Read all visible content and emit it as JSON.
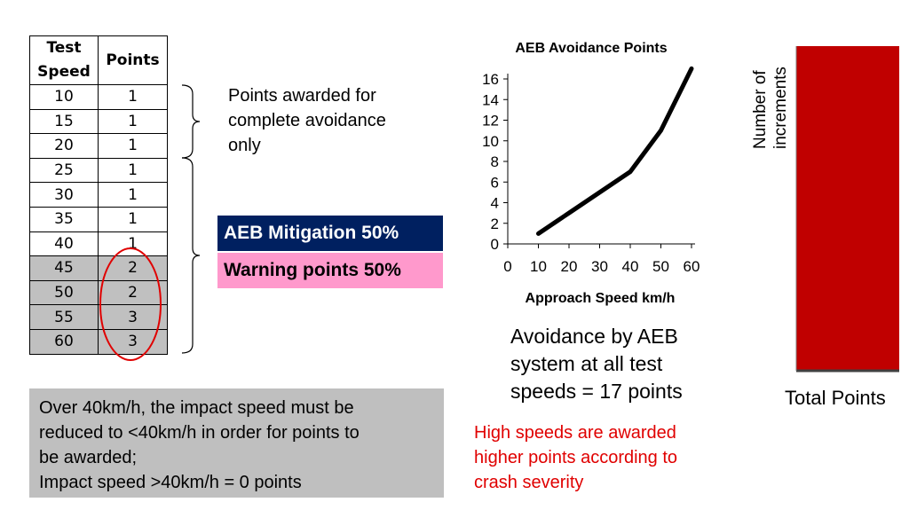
{
  "table": {
    "headers": [
      "Test Speed",
      "Points"
    ],
    "header_lines": [
      [
        "Test",
        "Speed"
      ],
      [
        "Points"
      ]
    ],
    "rows": [
      {
        "speed": "10",
        "points": "1"
      },
      {
        "speed": "15",
        "points": "1"
      },
      {
        "speed": "20",
        "points": "1"
      },
      {
        "speed": "25",
        "points": "1"
      },
      {
        "speed": "30",
        "points": "1"
      },
      {
        "speed": "35",
        "points": "1"
      },
      {
        "speed": "40",
        "points": "1"
      },
      {
        "speed": "45",
        "points": "2"
      },
      {
        "speed": "50",
        "points": "2"
      },
      {
        "speed": "55",
        "points": "3"
      },
      {
        "speed": "60",
        "points": "3"
      }
    ],
    "shaded_rows_from_speed": 45
  },
  "note_lines": [
    "Points awarded for",
    "complete avoidance",
    "only"
  ],
  "mitigation_label": "AEB Mitigation 50%",
  "warning_label": "Warning points 50%",
  "colors": {
    "mitigation": "#002060",
    "warning": "#ff99cc",
    "bar": "#c00000",
    "highlight": "#e00000"
  },
  "grey_lines": [
    "Over 40km/h, the impact speed must be",
    "reduced to <40km/h in order for points to",
    "be awarded;",
    "Impact speed >40km/h = 0 points"
  ],
  "chart_data": [
    {
      "type": "line",
      "title": "AEB Avoidance Points",
      "xlabel": "Approach Speed km/h",
      "ylabel": "",
      "x_ticks": [
        0,
        10,
        20,
        30,
        40,
        50,
        60
      ],
      "y_ticks": [
        0,
        2,
        4,
        6,
        8,
        10,
        12,
        14,
        16
      ],
      "xlim": [
        0,
        60
      ],
      "ylim": [
        0,
        16
      ],
      "grid": false,
      "x": [
        10,
        15,
        20,
        25,
        30,
        35,
        40,
        45,
        50,
        55,
        60
      ],
      "y": [
        1,
        2,
        3,
        4,
        5,
        6,
        7,
        9,
        11,
        14,
        17
      ]
    },
    {
      "type": "bar",
      "title": "",
      "xlabel": "Total Points",
      "ylabel_lines": [
        "Number of",
        "increments"
      ],
      "categories": [
        ""
      ],
      "values": [
        1
      ],
      "ylim": [
        0,
        1
      ]
    }
  ],
  "avoid_lines": [
    "Avoidance by AEB",
    "system at all test",
    "speeds = 17 points"
  ],
  "red_lines": [
    "High speeds are awarded",
    "higher points according to",
    "crash severity"
  ]
}
